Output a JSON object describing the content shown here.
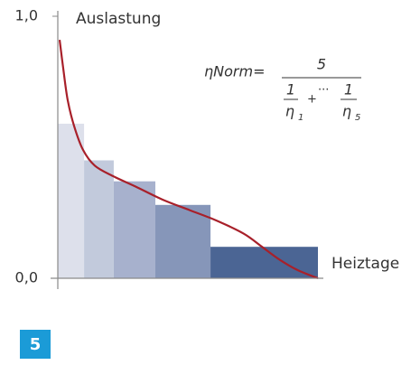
{
  "chart_data": {
    "type": "histogram",
    "ylabel": "Auslastung",
    "xlabel": "Heiztage",
    "ylim": [
      0,
      1
    ],
    "yticks": [
      {
        "value": 0,
        "label": "0,0"
      },
      {
        "value": 1,
        "label": "1,0"
      }
    ],
    "xlim": [
      0,
      100
    ],
    "bins": [
      0,
      10.1,
      21.5,
      37.5,
      58.7,
      100
    ],
    "values": [
      0.59,
      0.45,
      0.37,
      0.28,
      0.12
    ],
    "colors": [
      "#dde0eb",
      "#c2cadc",
      "#a7b1cd",
      "#8696b9",
      "#4b6594"
    ],
    "curve": {
      "color": "#a8202a",
      "x": [
        0.7,
        2.1,
        3.8,
        6.3,
        9.7,
        14.2,
        21.2,
        29.9,
        40.3,
        50.7,
        61.1,
        71.5,
        78.5,
        85.4,
        92.4,
        100
      ],
      "values": [
        0.91,
        0.8,
        0.68,
        0.58,
        0.49,
        0.43,
        0.39,
        0.35,
        0.3,
        0.26,
        0.22,
        0.17,
        0.12,
        0.07,
        0.03,
        0
      ]
    },
    "formula": {
      "lhs": "ηNorm=",
      "numerator": "5",
      "terms": [
        {
          "numerator": "1",
          "denominator": "η",
          "subscript": "1"
        },
        {
          "numerator": "1",
          "denominator": "η",
          "subscript": "5"
        }
      ],
      "plus": "+",
      "dots": "···"
    },
    "figure_label": "5"
  }
}
